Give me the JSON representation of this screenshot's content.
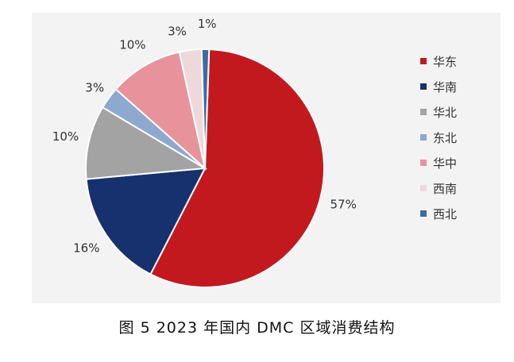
{
  "caption": "图 5  2023 年国内 DMC 区域消费结构",
  "chart_data": {
    "type": "pie",
    "title": "",
    "legend_position": "right",
    "slices": [
      {
        "name": "华东",
        "value": 57,
        "label": "57%",
        "color": "#c2191f"
      },
      {
        "name": "华南",
        "value": 16,
        "label": "16%",
        "color": "#17306e"
      },
      {
        "name": "华北",
        "value": 10,
        "label": "10%",
        "color": "#a3a3a3"
      },
      {
        "name": "东北",
        "value": 3,
        "label": "3%",
        "color": "#8da9cf"
      },
      {
        "name": "华中",
        "value": 10,
        "label": "10%",
        "color": "#e8939b"
      },
      {
        "name": "西南",
        "value": 3,
        "label": "3%",
        "color": "#efd8da"
      },
      {
        "name": "西北",
        "value": 1,
        "label": "1%",
        "color": "#3f6aa6"
      }
    ]
  }
}
